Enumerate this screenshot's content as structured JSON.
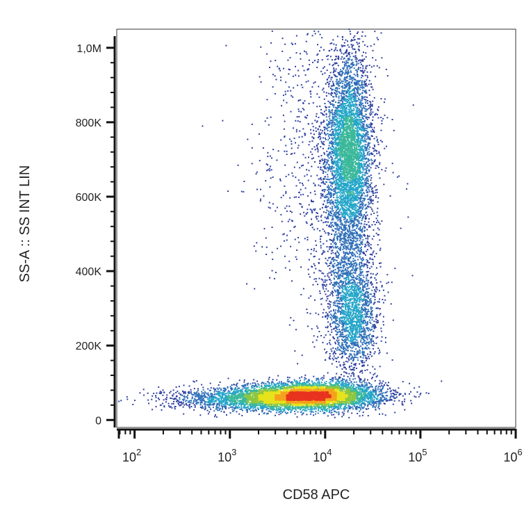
{
  "chart_data": {
    "type": "scatter",
    "subtype": "flow-cytometry density dot plot",
    "xlabel": "CD58 APC",
    "ylabel": "SS-A :: SS INT LIN",
    "x_scale": "log",
    "y_scale": "linear",
    "xlim": [
      65,
      1000000
    ],
    "ylim": [
      -20000,
      1050000
    ],
    "x_ticks": [
      {
        "value": 100,
        "base": "10",
        "exp": "2"
      },
      {
        "value": 1000,
        "base": "10",
        "exp": "3"
      },
      {
        "value": 10000,
        "base": "10",
        "exp": "4"
      },
      {
        "value": 100000,
        "base": "10",
        "exp": "5"
      },
      {
        "value": 1000000,
        "base": "10",
        "exp": "6"
      }
    ],
    "y_ticks": [
      {
        "value": 0,
        "label": "0"
      },
      {
        "value": 200000,
        "label": "200K"
      },
      {
        "value": 400000,
        "label": "400K"
      },
      {
        "value": 600000,
        "label": "600K"
      },
      {
        "value": 800000,
        "label": "800K"
      },
      {
        "value": 1000000,
        "label": "1,0M"
      }
    ],
    "density_colors": [
      "#2e3f9e",
      "#2f6fb8",
      "#25a6c9",
      "#3bb89a",
      "#8cc63f",
      "#e7e21a",
      "#f4a21d",
      "#e8331e"
    ],
    "populations": [
      {
        "x_center": 7000,
        "x_log_spread": 0.38,
        "y_center": 65000,
        "y_spread": 18000,
        "count": 5200
      },
      {
        "x_center": 1500,
        "x_log_spread": 0.45,
        "y_center": 55000,
        "y_spread": 15000,
        "count": 1400
      },
      {
        "x_center": 18000,
        "x_log_spread": 0.12,
        "y_center": 720000,
        "y_spread": 130000,
        "count": 4200
      },
      {
        "x_center": 20000,
        "x_log_spread": 0.13,
        "y_center": 280000,
        "y_spread": 80000,
        "count": 1600
      },
      {
        "x_center": 17000,
        "x_log_spread": 0.14,
        "y_center": 420000,
        "y_spread": 160000,
        "count": 900
      },
      {
        "x_center": 9000,
        "x_log_spread": 0.35,
        "y_center": 700000,
        "y_spread": 220000,
        "count": 900
      }
    ],
    "grid": false,
    "legend": "none"
  }
}
